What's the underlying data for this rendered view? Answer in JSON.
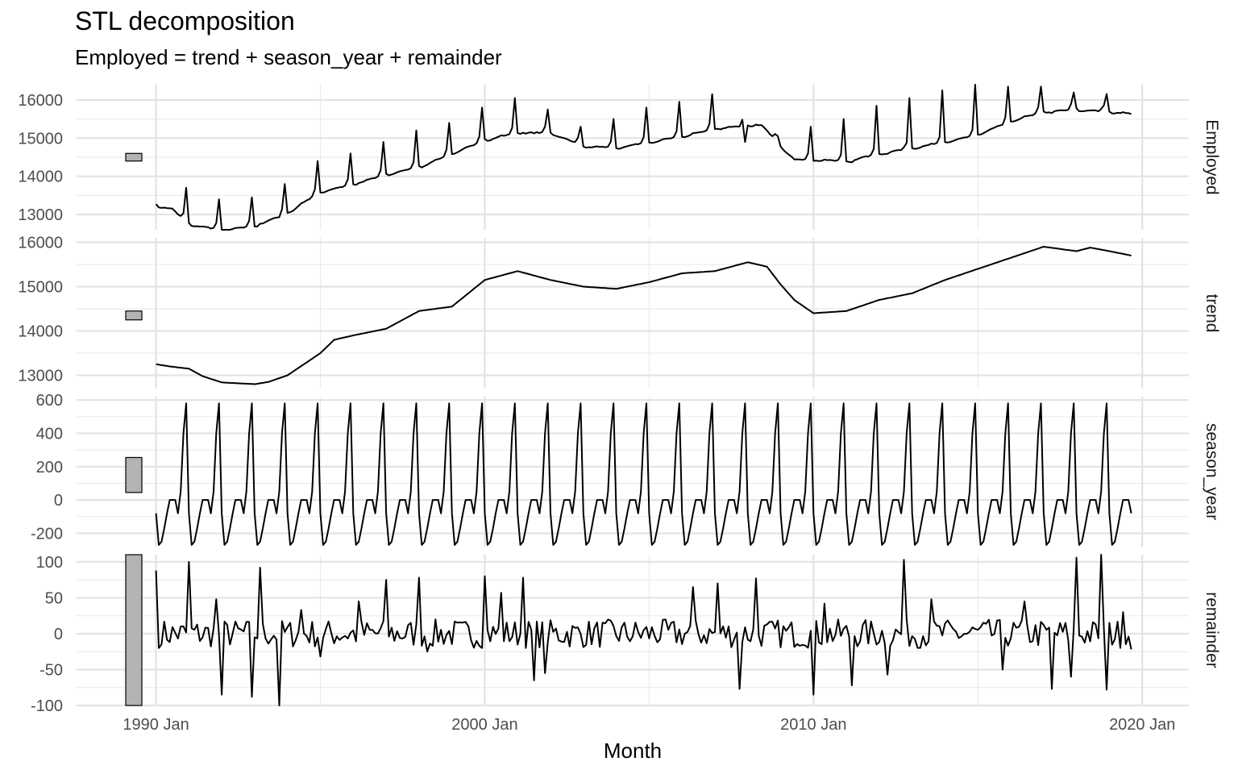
{
  "title": "STL decomposition",
  "subtitle": "Employed = trend + season_year + remainder",
  "chart_data": {
    "type": "line",
    "title": "STL decomposition",
    "subtitle": "Employed = trend + season_year + remainder",
    "xlabel": "Month",
    "x_ticks": [
      "1990 Jan",
      "2000 Jan",
      "2010 Jan",
      "2020 Jan"
    ],
    "x_range": [
      "1987 Aug",
      "2021 Jun"
    ],
    "grid": true,
    "panels": [
      {
        "name": "Employed",
        "ylim": [
          12600,
          16400
        ],
        "yticks": [
          13000,
          14000,
          15000,
          16000
        ],
        "minor_yticks": [
          12500,
          13500,
          14500,
          15500,
          16500
        ],
        "scale_bar": [
          14400,
          14600
        ],
        "keypoints": [
          [
            "1990-01",
            13250
          ],
          [
            "1990-07",
            13150
          ],
          [
            "1991-01",
            12750
          ],
          [
            "1992-01",
            12600
          ],
          [
            "1993-01",
            12700
          ],
          [
            "1994-01",
            13050
          ],
          [
            "1995-01",
            13600
          ],
          [
            "1996-01",
            13800
          ],
          [
            "1997-01",
            14050
          ],
          [
            "1998-01",
            14250
          ],
          [
            "1999-01",
            14600
          ],
          [
            "2000-01",
            14950
          ],
          [
            "2001-01",
            15150
          ],
          [
            "2002-01",
            15150
          ],
          [
            "2003-01",
            14800
          ],
          [
            "2004-01",
            14750
          ],
          [
            "2005-01",
            14900
          ],
          [
            "2006-01",
            15050
          ],
          [
            "2007-01",
            15250
          ],
          [
            "2008-01",
            15350
          ],
          [
            "2008-06",
            15350
          ],
          [
            "2009-01",
            14800
          ],
          [
            "2009-06",
            14450
          ],
          [
            "2010-01",
            14450
          ],
          [
            "2011-01",
            14400
          ],
          [
            "2012-01",
            14600
          ],
          [
            "2013-01",
            14750
          ],
          [
            "2014-01",
            14900
          ],
          [
            "2015-01",
            15100
          ],
          [
            "2016-01",
            15450
          ],
          [
            "2017-01",
            15700
          ],
          [
            "2018-01",
            15750
          ],
          [
            "2019-01",
            15700
          ],
          [
            "2019-09",
            15650
          ]
        ],
        "peaks": [
          13700,
          13400,
          13450,
          13800,
          14400,
          14600,
          14900,
          15200,
          15400,
          15800,
          16050,
          15750,
          15300,
          15500,
          15800,
          15950,
          16150,
          14900,
          15050,
          15300,
          15500,
          15850,
          16050,
          16250,
          16400,
          16350,
          16350
        ]
      },
      {
        "name": "trend",
        "ylim": [
          12700,
          16100
        ],
        "yticks": [
          13000,
          14000,
          15000,
          16000
        ],
        "minor_yticks": [
          13500,
          14500,
          15500
        ],
        "scale_bar": [
          14250,
          14450
        ],
        "keypoints": [
          [
            "1990-01",
            13250
          ],
          [
            "1990-06",
            13200
          ],
          [
            "1991-01",
            13150
          ],
          [
            "1991-06",
            12980
          ],
          [
            "1992-01",
            12840
          ],
          [
            "1993-01",
            12800
          ],
          [
            "1993-06",
            12850
          ],
          [
            "1994-01",
            13000
          ],
          [
            "1995-01",
            13500
          ],
          [
            "1995-06",
            13800
          ],
          [
            "1996-01",
            13900
          ],
          [
            "1997-01",
            14050
          ],
          [
            "1998-01",
            14450
          ],
          [
            "1999-01",
            14550
          ],
          [
            "2000-01",
            15150
          ],
          [
            "2001-01",
            15350
          ],
          [
            "2002-01",
            15150
          ],
          [
            "2003-01",
            15000
          ],
          [
            "2004-01",
            14950
          ],
          [
            "2005-01",
            15100
          ],
          [
            "2006-01",
            15300
          ],
          [
            "2007-01",
            15350
          ],
          [
            "2008-01",
            15550
          ],
          [
            "2008-08",
            15450
          ],
          [
            "2009-01",
            15050
          ],
          [
            "2009-06",
            14700
          ],
          [
            "2010-01",
            14400
          ],
          [
            "2011-01",
            14450
          ],
          [
            "2012-01",
            14700
          ],
          [
            "2013-01",
            14850
          ],
          [
            "2014-01",
            15150
          ],
          [
            "2015-01",
            15400
          ],
          [
            "2016-01",
            15650
          ],
          [
            "2017-01",
            15900
          ],
          [
            "2018-01",
            15800
          ],
          [
            "2018-06",
            15880
          ],
          [
            "2019-01",
            15800
          ],
          [
            "2019-09",
            15700
          ]
        ]
      },
      {
        "name": "season_year",
        "ylim": [
          -280,
          620
        ],
        "yticks": [
          -200,
          0,
          200,
          400,
          600
        ],
        "minor_yticks": [
          -100,
          100,
          300,
          500
        ],
        "scale_bar": [
          45,
          255
        ],
        "monthly_pattern": [
          -80,
          -270,
          -250,
          -170,
          -80,
          0,
          0,
          0,
          -80,
          50,
          400,
          580
        ]
      },
      {
        "name": "remainder",
        "ylim": [
          -100,
          110
        ],
        "yticks": [
          -100,
          -50,
          0,
          50,
          100
        ],
        "minor_yticks": [
          -75,
          -25,
          25,
          75
        ],
        "scale_bar": [
          -100,
          110
        ],
        "spikes": [
          [
            "1990-01",
            88
          ],
          [
            "1990-03",
            -15
          ],
          [
            "1991-01",
            100
          ],
          [
            "1991-11",
            48
          ],
          [
            "1992-01",
            -85
          ],
          [
            "1992-12",
            -88
          ],
          [
            "1993-03",
            92
          ],
          [
            "1993-10",
            -100
          ],
          [
            "1994-06",
            33
          ],
          [
            "1995-01",
            -32
          ],
          [
            "1996-03",
            45
          ],
          [
            "1997-01",
            75
          ],
          [
            "1998-01",
            78
          ],
          [
            "1998-04",
            -25
          ],
          [
            "2000-01",
            80
          ],
          [
            "2000-07",
            57
          ],
          [
            "2001-03",
            78
          ],
          [
            "2001-07",
            -65
          ],
          [
            "2001-11",
            -55
          ],
          [
            "2006-05",
            65
          ],
          [
            "2007-02",
            70
          ],
          [
            "2007-10",
            -77
          ],
          [
            "2008-04",
            77
          ],
          [
            "2010-01",
            -85
          ],
          [
            "2010-05",
            42
          ],
          [
            "2011-03",
            -72
          ],
          [
            "2012-04",
            -57
          ],
          [
            "2012-10",
            103
          ],
          [
            "2013-08",
            48
          ],
          [
            "2015-10",
            -50
          ],
          [
            "2016-06",
            45
          ],
          [
            "2017-04",
            -77
          ],
          [
            "2017-11",
            -60
          ],
          [
            "2018-01",
            106
          ],
          [
            "2018-10",
            110
          ],
          [
            "2018-12",
            -78
          ],
          [
            "2019-06",
            30
          ],
          [
            "2019-09",
            -22
          ]
        ]
      }
    ]
  }
}
